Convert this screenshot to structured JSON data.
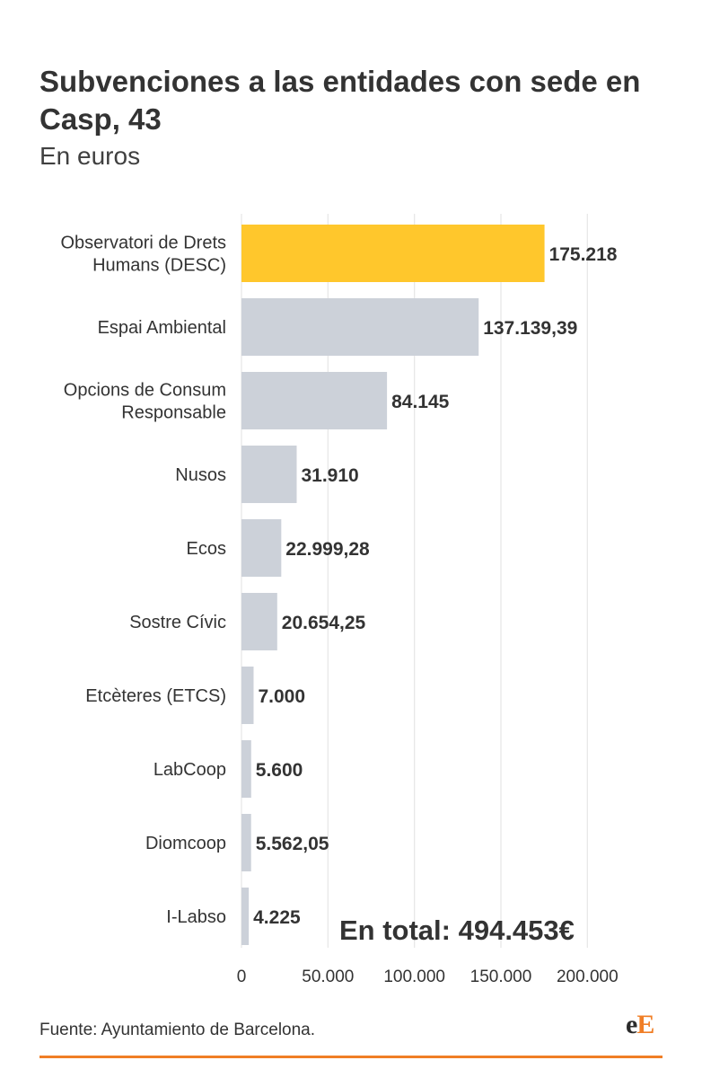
{
  "title": "Subvenciones a las entidades con sede en Casp, 43",
  "subtitle": "En euros",
  "source": "Fuente: Ayuntamiento de Barcelona.",
  "logo": {
    "lower": "e",
    "upper": "E",
    "brand_color": "#f07e26"
  },
  "colors": {
    "highlight": "#ffc72c",
    "bar": "#ccd1d9",
    "grid": "#e6e6e6",
    "text": "#333333",
    "accent_rule": "#f07e26"
  },
  "annotation": "En total: 494.453€",
  "chart_data": {
    "type": "bar",
    "orientation": "horizontal",
    "categories": [
      "Observatori de Drets Humans (DESC)",
      "Espai Ambiental",
      "Opcions de Consum Responsable",
      "Nusos",
      "Ecos",
      "Sostre Cívic",
      "Etcèteres (ETCS)",
      "LabCoop",
      "Diomcoop",
      "I-Labso"
    ],
    "category_lines": [
      [
        "Observatori de Drets",
        "Humans (DESC)"
      ],
      [
        "Espai Ambiental"
      ],
      [
        "Opcions de Consum",
        "Responsable"
      ],
      [
        "Nusos"
      ],
      [
        "Ecos"
      ],
      [
        "Sostre Cívic"
      ],
      [
        "Etcèteres (ETCS)"
      ],
      [
        "LabCoop"
      ],
      [
        "Diomcoop"
      ],
      [
        "I-Labso"
      ]
    ],
    "values": [
      175218,
      137139.39,
      84145,
      31910,
      22999.28,
      20654.25,
      7000,
      5600,
      5562.05,
      4225
    ],
    "value_labels": [
      "175.218",
      "137.139,39",
      "84.145",
      "31.910",
      "22.999,28",
      "20.654,25",
      "7.000",
      "5.600",
      "5.562,05",
      "4.225"
    ],
    "highlight_index": 0,
    "xlim": [
      0,
      218000
    ],
    "x_ticks": [
      0,
      50000,
      100000,
      150000,
      200000
    ],
    "x_tick_labels": [
      "0",
      "50.000",
      "100.000",
      "150.000",
      "200.000"
    ],
    "grid": true,
    "legend": "none"
  }
}
